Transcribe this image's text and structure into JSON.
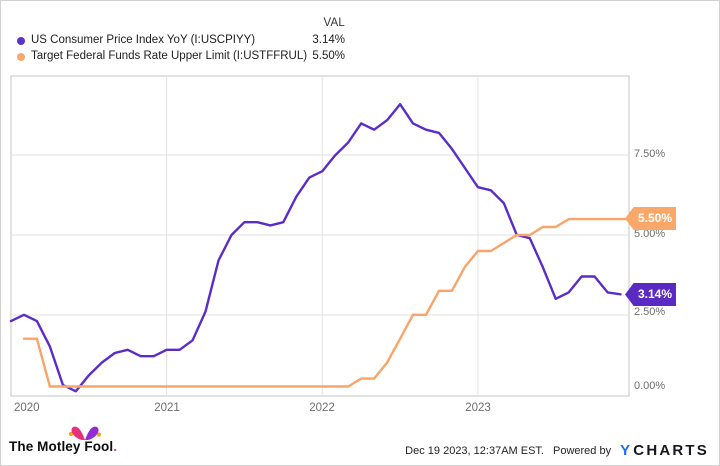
{
  "legend": {
    "val_header": "VAL",
    "series": [
      {
        "label": "US Consumer Price Index YoY (I:USCPIYY)",
        "value": "3.14%",
        "color": "#5c33cf"
      },
      {
        "label": "Target Federal Funds Rate Upper Limit (I:USTFFRUL)",
        "value": "5.50%",
        "color": "#f9a870"
      }
    ]
  },
  "chart_data": {
    "type": "line",
    "title": "",
    "x_axis": {
      "unit": "months",
      "start": "2019-12",
      "end": "2023-12",
      "tick_labels": [
        "2020",
        "2021",
        "2022",
        "2023"
      ]
    },
    "y_axis": {
      "tick_labels": [
        "7.50%",
        "5.00%",
        "2.50%",
        "0.00%"
      ],
      "ylim": [
        0,
        10
      ],
      "unit": "percent"
    },
    "grid": true,
    "legend_position": "top-left",
    "series": [
      {
        "name": "US Consumer Price Index YoY (I:USCPIYY)",
        "key": "cpi-line",
        "color": "#5b2dc8",
        "start_offset_months": 0,
        "extend_to_right": false,
        "end_label": "3.14%",
        "values": [
          2.3,
          2.5,
          2.3,
          1.5,
          0.3,
          0.1,
          0.6,
          1.0,
          1.3,
          1.4,
          1.2,
          1.2,
          1.4,
          1.4,
          1.7,
          2.6,
          4.2,
          5.0,
          5.4,
          5.4,
          5.3,
          5.4,
          6.2,
          6.8,
          7.0,
          7.5,
          7.9,
          8.5,
          8.3,
          8.6,
          9.1,
          8.5,
          8.3,
          8.2,
          7.7,
          7.1,
          6.5,
          6.4,
          6.0,
          5.0,
          4.9,
          4.0,
          3.0,
          3.2,
          3.7,
          3.7,
          3.2,
          3.14
        ]
      },
      {
        "name": "Target Federal Funds Rate Upper Limit (I:USTFFRUL)",
        "key": "fed-funds-line",
        "color": "#f9a469",
        "start_offset_months": 1,
        "extend_to_right": true,
        "end_label": "5.50%",
        "values": [
          1.75,
          1.75,
          0.25,
          0.25,
          0.25,
          0.25,
          0.25,
          0.25,
          0.25,
          0.25,
          0.25,
          0.25,
          0.25,
          0.25,
          0.25,
          0.25,
          0.25,
          0.25,
          0.25,
          0.25,
          0.25,
          0.25,
          0.25,
          0.25,
          0.25,
          0.25,
          0.5,
          0.5,
          1.0,
          1.75,
          2.5,
          2.5,
          3.25,
          3.25,
          4.0,
          4.5,
          4.5,
          4.75,
          5.0,
          5.0,
          5.25,
          5.25,
          5.5,
          5.5,
          5.5,
          5.5,
          5.5
        ]
      }
    ]
  },
  "badges": [
    {
      "text": "5.50%",
      "color": "#f9a869"
    },
    {
      "text": "3.14%",
      "color": "#5b2ac3"
    }
  ],
  "y_ticks": {
    "t0": "7.50%",
    "t1": "5.00%",
    "t2": "2.50%",
    "t3": "0.00%"
  },
  "x_ticks": {
    "t0": "2020",
    "t1": "2021",
    "t2": "2022",
    "t3": "2023"
  },
  "footer": {
    "brand": "The Motley Fool",
    "brand_dot": ".",
    "timestamp": "Dec 19 2023, 12:37AM EST.",
    "powered_by": "Powered by",
    "logo_y": "Y",
    "logo_rest": "CHARTS"
  },
  "icons": {
    "jester_hat": "motley-fool-jester-hat",
    "hat_left_color": "#e8317e",
    "hat_right_color": "#8f2bd8",
    "hat_bell_color": "#f6a01b"
  }
}
